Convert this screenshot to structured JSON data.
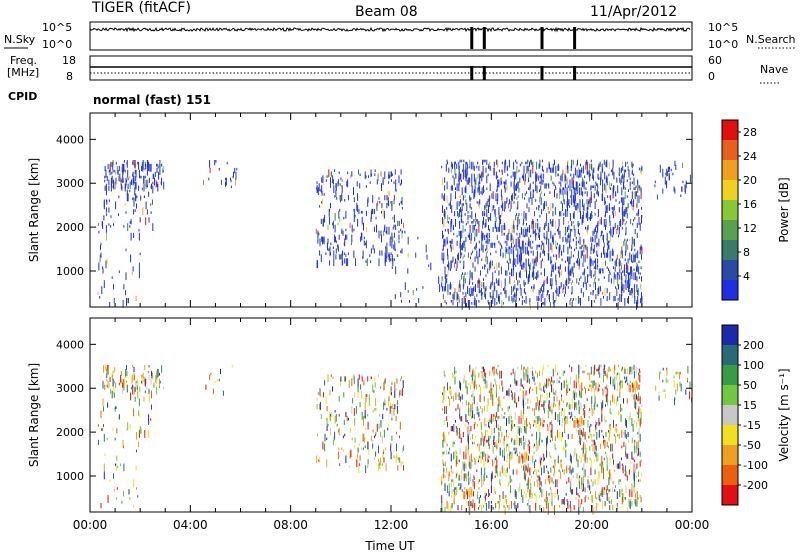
{
  "header": {
    "title": "TIGER (fitACF)",
    "beam": "Beam 08",
    "date": "11/Apr/2012"
  },
  "panels": {
    "nsky_label": "N.Sky",
    "nsky_ticks": [
      "10^5",
      "10^0"
    ],
    "nsearch_label": "N.Search",
    "nsearch_ticks": [
      "10^5",
      "10^0"
    ],
    "freq_label_1": "Freq.",
    "freq_label_2": "[MHz]",
    "freq_ticks": [
      "18",
      "8"
    ],
    "nave_label": "Nave",
    "nave_ticks": [
      "60",
      "0"
    ],
    "cpid_label": "CPID",
    "cpid_text": "normal (fast) 151"
  },
  "colors": {
    "power": [
      "#2030e0",
      "#2a4aa8",
      "#3a7a6a",
      "#5aa050",
      "#88c838",
      "#f0d020",
      "#f0a020",
      "#e86020",
      "#e01010"
    ],
    "velocity": [
      "#1a2aa8",
      "#2a6a78",
      "#3a9a48",
      "#70c840",
      "#c8c8c8",
      "#f0e020",
      "#f0a020",
      "#e86010",
      "#e01010"
    ]
  },
  "chart_data": [
    {
      "type": "heatmap",
      "name": "power",
      "ylabel": "Slant Range [km]",
      "xlabel": "Time UT",
      "x_ticks": [
        "00:00",
        "04:00",
        "08:00",
        "12:00",
        "16:00",
        "20:00",
        "00:00"
      ],
      "xlim_hours": [
        0,
        24
      ],
      "ylim": [
        180,
        4600
      ],
      "y_ticks": [
        1000,
        2000,
        3000,
        4000
      ],
      "colorbar": {
        "label": "Power [dB]",
        "ticks": [
          "4",
          "8",
          "12",
          "16",
          "20",
          "24",
          "28"
        ],
        "range": [
          0,
          30
        ]
      },
      "regions": [
        {
          "t": [
            0.5,
            3.0
          ],
          "r": [
            2900,
            3500
          ],
          "density": 0.55
        },
        {
          "t": [
            0.3,
            2.5
          ],
          "r": [
            2000,
            2900
          ],
          "density": 0.18
        },
        {
          "t": [
            0.3,
            2.0
          ],
          "r": [
            250,
            2000
          ],
          "density": 0.08
        },
        {
          "t": [
            4.5,
            6.0
          ],
          "r": [
            2900,
            3500
          ],
          "density": 0.12
        },
        {
          "t": [
            9.0,
            12.5
          ],
          "r": [
            1200,
            3300
          ],
          "density": 0.22
        },
        {
          "t": [
            12.0,
            14.0
          ],
          "r": [
            250,
            2000
          ],
          "density": 0.05
        },
        {
          "t": [
            14.0,
            22.0
          ],
          "r": [
            250,
            3500
          ],
          "density": 0.38
        },
        {
          "t": [
            22.5,
            24.0
          ],
          "r": [
            2700,
            3500
          ],
          "density": 0.15
        }
      ]
    },
    {
      "type": "heatmap",
      "name": "velocity",
      "ylabel": "Slant Range [km]",
      "xlabel": "Time UT",
      "x_ticks": [
        "00:00",
        "04:00",
        "08:00",
        "12:00",
        "16:00",
        "20:00",
        "00:00"
      ],
      "xlim_hours": [
        0,
        24
      ],
      "ylim": [
        180,
        4600
      ],
      "y_ticks": [
        1000,
        2000,
        3000,
        4000
      ],
      "colorbar": {
        "label": "Velocity [m s⁻¹]",
        "ticks": [
          "200",
          "100",
          "50",
          "15",
          "-15",
          "-50",
          "-100",
          "-200"
        ]
      },
      "regions": [
        {
          "t": [
            0.5,
            3.0
          ],
          "r": [
            2900,
            3500
          ],
          "density": 0.4
        },
        {
          "t": [
            0.3,
            2.5
          ],
          "r": [
            2000,
            2900
          ],
          "density": 0.12
        },
        {
          "t": [
            0.3,
            2.0
          ],
          "r": [
            250,
            2000
          ],
          "density": 0.06
        },
        {
          "t": [
            4.5,
            6.0
          ],
          "r": [
            2900,
            3500
          ],
          "density": 0.08
        },
        {
          "t": [
            9.0,
            12.5
          ],
          "r": [
            1200,
            3300
          ],
          "density": 0.18
        },
        {
          "t": [
            14.0,
            22.0
          ],
          "r": [
            250,
            3500
          ],
          "density": 0.32
        },
        {
          "t": [
            22.5,
            24.0
          ],
          "r": [
            2700,
            3500
          ],
          "density": 0.12
        }
      ]
    }
  ]
}
